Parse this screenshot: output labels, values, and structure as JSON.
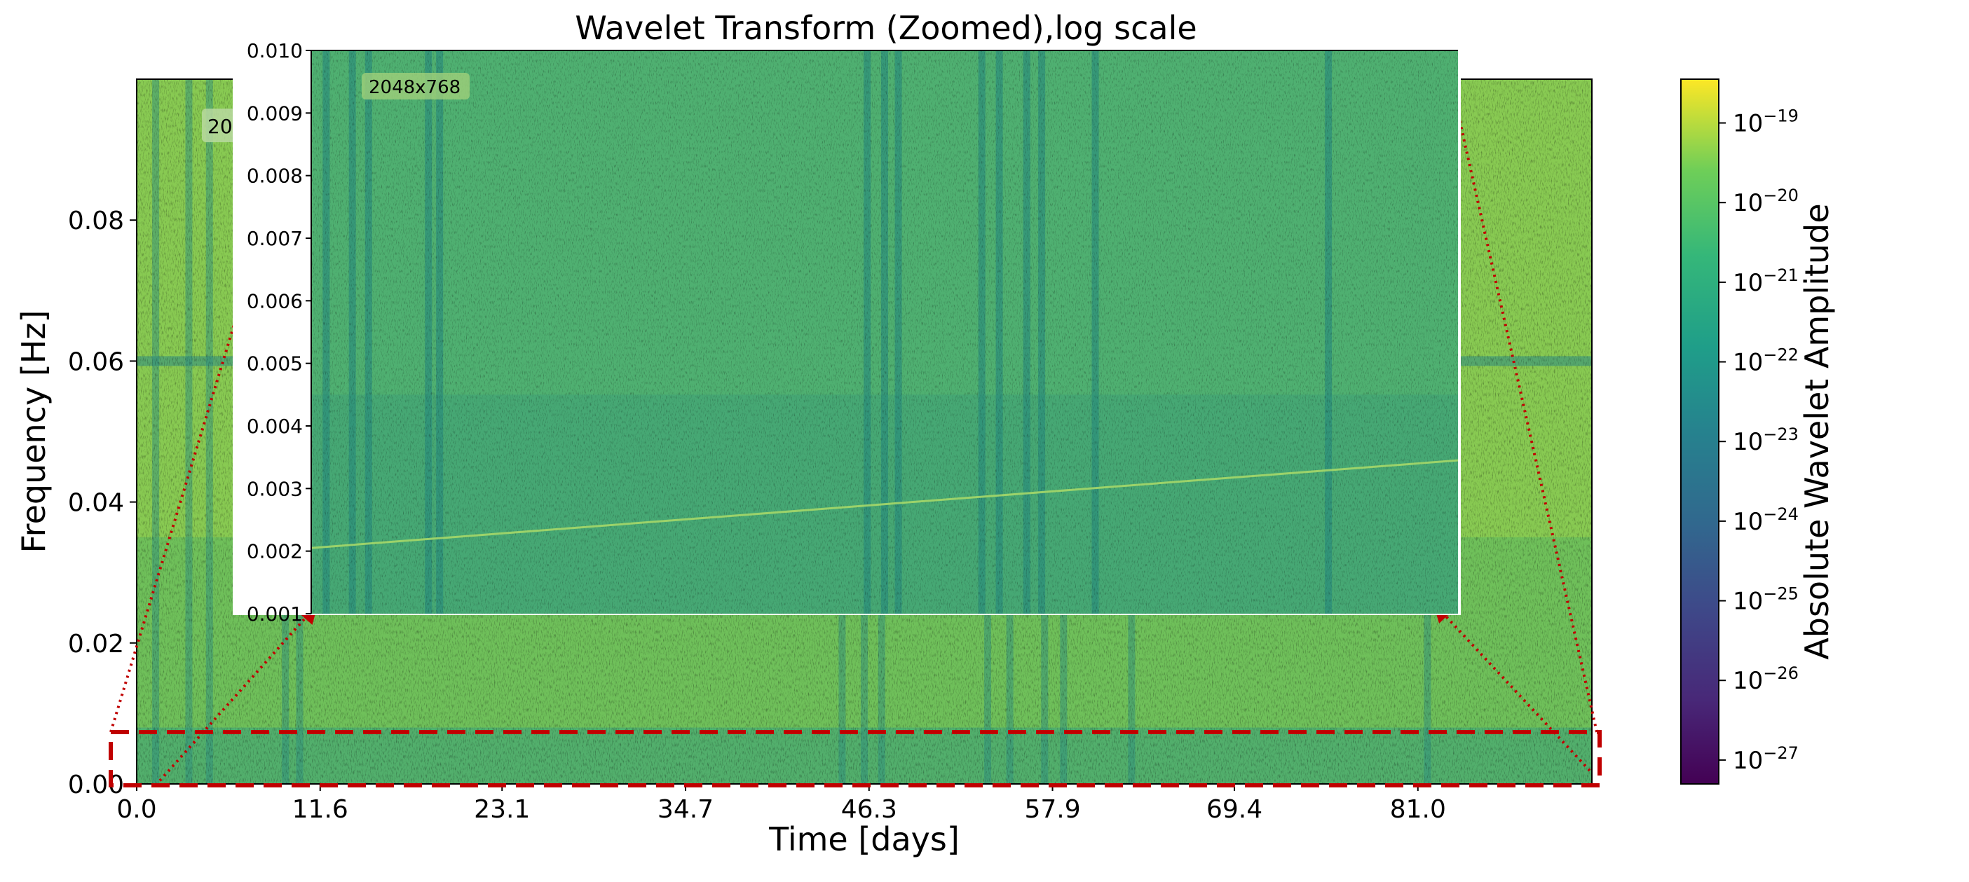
{
  "chart_data": {
    "type": "heatmap",
    "title": "Wavelet Transform (Zoomed),log scale",
    "xlabel": "Time [days]",
    "ylabel": "Frequency [Hz]",
    "xlim": [
      0,
      92
    ],
    "ylim": [
      0,
      0.1
    ],
    "x_ticks": [
      "0.0",
      "11.6",
      "23.1",
      "34.7",
      "46.3",
      "57.9",
      "69.4",
      "81.0"
    ],
    "x_tick_values": [
      0.0,
      11.6,
      23.1,
      34.7,
      46.3,
      57.9,
      69.4,
      81.0
    ],
    "y_ticks": [
      "0.00",
      "0.02",
      "0.04",
      "0.06",
      "0.08"
    ],
    "y_tick_values": [
      0.0,
      0.02,
      0.04,
      0.06,
      0.08
    ],
    "main_badge": "20",
    "colorbar": {
      "label": "Absolute Wavelet Amplitude",
      "scale": "log",
      "colormap": "viridis",
      "ticks": [
        "10^-19",
        "10^-20",
        "10^-21",
        "10^-22",
        "10^-23",
        "10^-24",
        "10^-25",
        "10^-26",
        "10^-27"
      ],
      "tick_exponents": [
        -19,
        -20,
        -21,
        -22,
        -23,
        -24,
        -25,
        -26,
        -27
      ],
      "range_exponents": [
        -27.3,
        -18.45
      ]
    },
    "inset": {
      "badge": "2048x768",
      "ylim": [
        0.001,
        0.01
      ],
      "xlim": [
        0,
        92
      ],
      "y_ticks": [
        "0.010",
        "0.009",
        "0.008",
        "0.007",
        "0.006",
        "0.005",
        "0.004",
        "0.003",
        "0.002",
        "0.001"
      ],
      "y_tick_values": [
        0.01,
        0.009,
        0.008,
        0.007,
        0.006,
        0.005,
        0.004,
        0.003,
        0.002,
        0.001
      ],
      "chirp_track": {
        "x": [
          0,
          92
        ],
        "y": [
          0.00205,
          0.00345
        ]
      }
    },
    "zoom_region": {
      "x": [
        0,
        92
      ],
      "y": [
        0,
        0.0075
      ]
    },
    "stripe_times": [
      1.2,
      3.3,
      4.6,
      9.4,
      10.3,
      44.6,
      46.0,
      47.1,
      53.8,
      55.2,
      57.4,
      58.6,
      62.9,
      81.6
    ],
    "horizontal_band_freq": 0.06,
    "colors": {
      "annotation": "#c00000",
      "axis": "#000000"
    },
    "grid": false
  }
}
